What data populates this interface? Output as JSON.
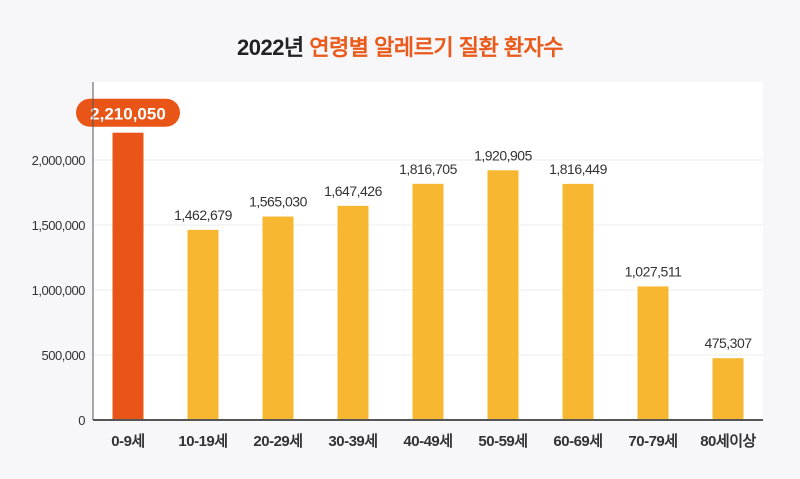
{
  "chart_data": {
    "type": "bar",
    "title_prefix": "2022년",
    "title_highlight": "연령별 알레르기 질환 환자수",
    "categories": [
      "0-9세",
      "10-19세",
      "20-29세",
      "30-39세",
      "40-49세",
      "50-59세",
      "60-69세",
      "70-79세",
      "80세이상"
    ],
    "values": [
      2210050,
      1462679,
      1565030,
      1647426,
      1816705,
      1920905,
      1816449,
      1027511,
      475307
    ],
    "value_labels": [
      "2,210,050",
      "1,462,679",
      "1,565,030",
      "1,647,426",
      "1,816,705",
      "1,920,905",
      "1,816,449",
      "1,027,511",
      "475,307"
    ],
    "yticks": [
      0,
      500000,
      1000000,
      1500000,
      2000000
    ],
    "ytick_labels": [
      "0",
      "500,000",
      "1,000,000",
      "1,500,000",
      "2,000,000"
    ],
    "ylim": [
      0,
      2500000
    ],
    "grid": true,
    "highlight_index": 0,
    "colors": {
      "highlight": "#e85516",
      "bar": "#f7b731",
      "title_highlight": "#ea5a1a",
      "axis": "#555555",
      "grid": "#ececec",
      "plot_bg": "#ffffff",
      "page_bg": "#f7f7f9"
    }
  }
}
